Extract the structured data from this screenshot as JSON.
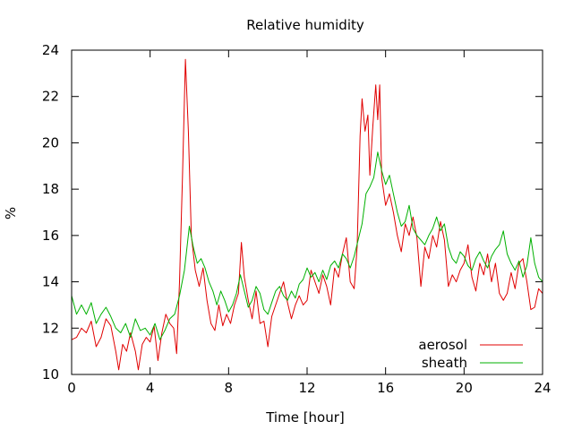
{
  "chart_data": {
    "type": "line",
    "title": "Relative humidity",
    "xlabel": "Time [hour]",
    "ylabel": "%",
    "xlim": [
      0,
      24
    ],
    "ylim": [
      10,
      24
    ],
    "xticks": [
      0,
      4,
      8,
      12,
      16,
      20,
      24
    ],
    "yticks": [
      10,
      12,
      14,
      16,
      18,
      20,
      22,
      24
    ],
    "grid": false,
    "legend_position": "bottom-right",
    "series": [
      {
        "name": "aerosol",
        "color": "#e00000",
        "points": [
          [
            0.0,
            11.5
          ],
          [
            0.25,
            11.6
          ],
          [
            0.5,
            12.0
          ],
          [
            0.75,
            11.8
          ],
          [
            1.0,
            12.3
          ],
          [
            1.25,
            11.2
          ],
          [
            1.5,
            11.6
          ],
          [
            1.75,
            12.4
          ],
          [
            2.0,
            12.1
          ],
          [
            2.25,
            11.0
          ],
          [
            2.4,
            10.2
          ],
          [
            2.6,
            11.3
          ],
          [
            2.8,
            11.0
          ],
          [
            3.0,
            11.8
          ],
          [
            3.25,
            11.0
          ],
          [
            3.4,
            10.2
          ],
          [
            3.6,
            11.3
          ],
          [
            3.8,
            11.6
          ],
          [
            4.0,
            11.4
          ],
          [
            4.2,
            12.1
          ],
          [
            4.4,
            10.6
          ],
          [
            4.6,
            11.8
          ],
          [
            4.8,
            12.6
          ],
          [
            5.0,
            12.2
          ],
          [
            5.2,
            12.0
          ],
          [
            5.35,
            10.9
          ],
          [
            5.5,
            14.0
          ],
          [
            5.65,
            18.5
          ],
          [
            5.8,
            23.6
          ],
          [
            5.95,
            20.5
          ],
          [
            6.1,
            16.0
          ],
          [
            6.3,
            14.5
          ],
          [
            6.5,
            13.8
          ],
          [
            6.7,
            14.6
          ],
          [
            6.9,
            13.2
          ],
          [
            7.1,
            12.2
          ],
          [
            7.3,
            11.9
          ],
          [
            7.5,
            13.0
          ],
          [
            7.7,
            12.1
          ],
          [
            7.9,
            12.6
          ],
          [
            8.1,
            12.2
          ],
          [
            8.3,
            13.0
          ],
          [
            8.5,
            13.5
          ],
          [
            8.65,
            15.7
          ],
          [
            8.8,
            14.2
          ],
          [
            9.0,
            13.2
          ],
          [
            9.2,
            12.4
          ],
          [
            9.4,
            13.6
          ],
          [
            9.6,
            12.2
          ],
          [
            9.8,
            12.3
          ],
          [
            10.0,
            11.2
          ],
          [
            10.2,
            12.5
          ],
          [
            10.4,
            13.0
          ],
          [
            10.6,
            13.5
          ],
          [
            10.8,
            14.0
          ],
          [
            11.0,
            13.1
          ],
          [
            11.2,
            12.4
          ],
          [
            11.4,
            13.0
          ],
          [
            11.6,
            13.4
          ],
          [
            11.8,
            13.0
          ],
          [
            12.0,
            13.2
          ],
          [
            12.2,
            14.5
          ],
          [
            12.4,
            14.0
          ],
          [
            12.6,
            13.5
          ],
          [
            12.8,
            14.3
          ],
          [
            13.0,
            13.8
          ],
          [
            13.2,
            13.0
          ],
          [
            13.4,
            14.6
          ],
          [
            13.6,
            14.2
          ],
          [
            13.8,
            15.2
          ],
          [
            14.0,
            15.9
          ],
          [
            14.2,
            14.0
          ],
          [
            14.4,
            13.7
          ],
          [
            14.55,
            15.5
          ],
          [
            14.7,
            20.3
          ],
          [
            14.8,
            21.9
          ],
          [
            14.95,
            20.5
          ],
          [
            15.1,
            21.2
          ],
          [
            15.2,
            18.6
          ],
          [
            15.35,
            20.7
          ],
          [
            15.5,
            22.5
          ],
          [
            15.6,
            21.0
          ],
          [
            15.7,
            22.5
          ],
          [
            15.8,
            18.5
          ],
          [
            16.0,
            17.3
          ],
          [
            16.2,
            17.8
          ],
          [
            16.4,
            17.0
          ],
          [
            16.6,
            16.0
          ],
          [
            16.8,
            15.3
          ],
          [
            17.0,
            16.5
          ],
          [
            17.2,
            16.0
          ],
          [
            17.4,
            16.8
          ],
          [
            17.6,
            15.9
          ],
          [
            17.8,
            13.8
          ],
          [
            18.0,
            15.5
          ],
          [
            18.2,
            15.0
          ],
          [
            18.4,
            16.0
          ],
          [
            18.6,
            15.5
          ],
          [
            18.8,
            16.6
          ],
          [
            19.0,
            15.8
          ],
          [
            19.2,
            13.8
          ],
          [
            19.4,
            14.3
          ],
          [
            19.6,
            14.0
          ],
          [
            19.8,
            14.5
          ],
          [
            20.0,
            14.8
          ],
          [
            20.2,
            15.6
          ],
          [
            20.4,
            14.2
          ],
          [
            20.6,
            13.6
          ],
          [
            20.8,
            14.8
          ],
          [
            21.0,
            14.3
          ],
          [
            21.2,
            15.2
          ],
          [
            21.4,
            14.0
          ],
          [
            21.6,
            14.8
          ],
          [
            21.8,
            13.5
          ],
          [
            22.0,
            13.2
          ],
          [
            22.2,
            13.5
          ],
          [
            22.4,
            14.4
          ],
          [
            22.6,
            13.7
          ],
          [
            22.8,
            14.8
          ],
          [
            23.0,
            15.0
          ],
          [
            23.2,
            14.0
          ],
          [
            23.4,
            12.8
          ],
          [
            23.6,
            12.9
          ],
          [
            23.8,
            13.7
          ],
          [
            24.0,
            13.5
          ]
        ]
      },
      {
        "name": "sheath",
        "color": "#00b000",
        "points": [
          [
            0.0,
            13.4
          ],
          [
            0.25,
            12.6
          ],
          [
            0.5,
            13.0
          ],
          [
            0.75,
            12.6
          ],
          [
            1.0,
            13.1
          ],
          [
            1.25,
            12.2
          ],
          [
            1.5,
            12.6
          ],
          [
            1.75,
            12.9
          ],
          [
            2.0,
            12.5
          ],
          [
            2.25,
            12.0
          ],
          [
            2.5,
            11.8
          ],
          [
            2.75,
            12.2
          ],
          [
            3.0,
            11.6
          ],
          [
            3.25,
            12.4
          ],
          [
            3.5,
            11.9
          ],
          [
            3.75,
            12.0
          ],
          [
            4.0,
            11.7
          ],
          [
            4.25,
            12.2
          ],
          [
            4.5,
            11.5
          ],
          [
            4.75,
            11.9
          ],
          [
            5.0,
            12.4
          ],
          [
            5.25,
            12.6
          ],
          [
            5.5,
            13.4
          ],
          [
            5.75,
            14.5
          ],
          [
            6.0,
            16.4
          ],
          [
            6.2,
            15.5
          ],
          [
            6.4,
            14.8
          ],
          [
            6.6,
            15.0
          ],
          [
            6.8,
            14.6
          ],
          [
            7.0,
            14.0
          ],
          [
            7.2,
            13.6
          ],
          [
            7.4,
            13.0
          ],
          [
            7.6,
            13.6
          ],
          [
            7.8,
            13.2
          ],
          [
            8.0,
            12.7
          ],
          [
            8.2,
            13.0
          ],
          [
            8.4,
            13.5
          ],
          [
            8.6,
            14.3
          ],
          [
            8.8,
            13.6
          ],
          [
            9.0,
            12.9
          ],
          [
            9.2,
            13.2
          ],
          [
            9.4,
            13.8
          ],
          [
            9.6,
            13.5
          ],
          [
            9.8,
            12.8
          ],
          [
            10.0,
            12.6
          ],
          [
            10.2,
            13.1
          ],
          [
            10.4,
            13.6
          ],
          [
            10.6,
            13.8
          ],
          [
            10.8,
            13.4
          ],
          [
            11.0,
            13.2
          ],
          [
            11.2,
            13.6
          ],
          [
            11.4,
            13.3
          ],
          [
            11.6,
            13.9
          ],
          [
            11.8,
            14.1
          ],
          [
            12.0,
            14.6
          ],
          [
            12.2,
            14.2
          ],
          [
            12.4,
            14.4
          ],
          [
            12.6,
            14.0
          ],
          [
            12.8,
            14.5
          ],
          [
            13.0,
            14.1
          ],
          [
            13.2,
            14.7
          ],
          [
            13.4,
            14.9
          ],
          [
            13.6,
            14.6
          ],
          [
            13.8,
            15.2
          ],
          [
            14.0,
            15.0
          ],
          [
            14.2,
            14.6
          ],
          [
            14.4,
            15.1
          ],
          [
            14.6,
            15.8
          ],
          [
            14.8,
            16.5
          ],
          [
            15.0,
            17.8
          ],
          [
            15.2,
            18.1
          ],
          [
            15.4,
            18.5
          ],
          [
            15.6,
            19.6
          ],
          [
            15.8,
            18.8
          ],
          [
            16.0,
            18.2
          ],
          [
            16.2,
            18.6
          ],
          [
            16.4,
            17.8
          ],
          [
            16.6,
            17.0
          ],
          [
            16.8,
            16.4
          ],
          [
            17.0,
            16.6
          ],
          [
            17.2,
            17.3
          ],
          [
            17.4,
            16.3
          ],
          [
            17.6,
            16.0
          ],
          [
            17.8,
            15.8
          ],
          [
            18.0,
            15.6
          ],
          [
            18.2,
            16.0
          ],
          [
            18.4,
            16.3
          ],
          [
            18.6,
            16.8
          ],
          [
            18.8,
            16.2
          ],
          [
            19.0,
            16.5
          ],
          [
            19.2,
            15.5
          ],
          [
            19.4,
            15.0
          ],
          [
            19.6,
            14.8
          ],
          [
            19.8,
            15.3
          ],
          [
            20.0,
            15.1
          ],
          [
            20.2,
            14.7
          ],
          [
            20.4,
            14.5
          ],
          [
            20.6,
            15.0
          ],
          [
            20.8,
            15.3
          ],
          [
            21.0,
            14.9
          ],
          [
            21.2,
            14.6
          ],
          [
            21.4,
            15.1
          ],
          [
            21.6,
            15.4
          ],
          [
            21.8,
            15.6
          ],
          [
            22.0,
            16.2
          ],
          [
            22.2,
            15.2
          ],
          [
            22.4,
            14.8
          ],
          [
            22.6,
            14.5
          ],
          [
            22.8,
            14.9
          ],
          [
            23.0,
            14.2
          ],
          [
            23.2,
            14.7
          ],
          [
            23.4,
            15.9
          ],
          [
            23.6,
            14.8
          ],
          [
            23.8,
            14.2
          ],
          [
            24.0,
            14.0
          ]
        ]
      }
    ]
  }
}
